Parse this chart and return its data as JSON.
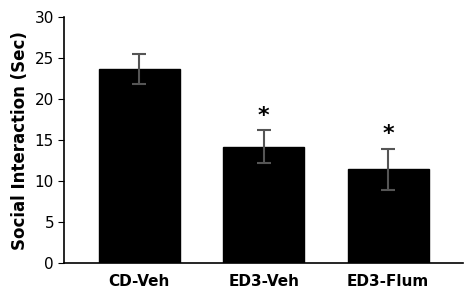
{
  "categories": [
    "CD-Veh",
    "ED3-Veh",
    "ED3-Flum"
  ],
  "values": [
    23.7,
    14.2,
    11.5
  ],
  "errors": [
    1.8,
    2.0,
    2.5
  ],
  "bar_color": "#000000",
  "bar_width": 0.65,
  "ylabel": "Social Interaction (Sec)",
  "ylim": [
    0,
    30
  ],
  "yticks": [
    0,
    5,
    10,
    15,
    20,
    25,
    30
  ],
  "significance": [
    false,
    true,
    true
  ],
  "sig_marker": "*",
  "sig_fontsize": 16,
  "ylabel_fontsize": 12,
  "tick_fontsize": 11,
  "error_capsize": 5,
  "error_linewidth": 1.5,
  "error_color": "#555555",
  "background_color": "#ffffff"
}
